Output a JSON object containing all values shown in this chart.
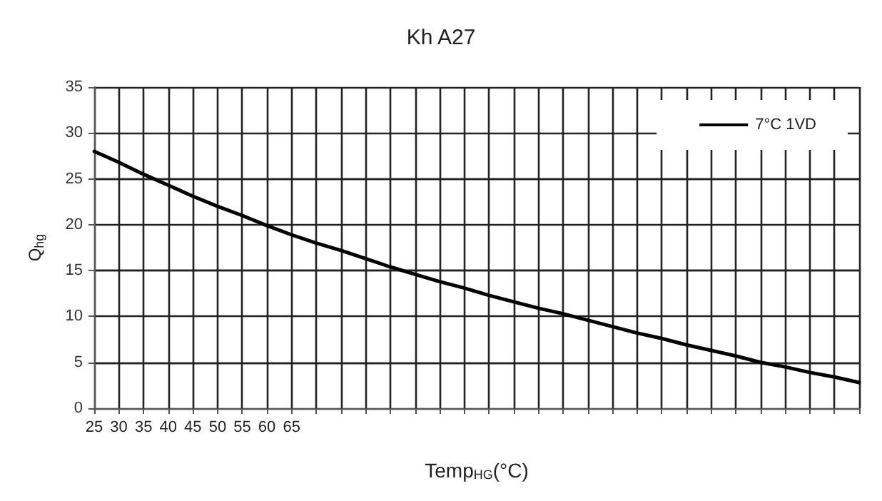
{
  "chart_data": {
    "type": "line",
    "title": "Kh A27",
    "xlabel": "Temp$_{HG}$(°C)",
    "ylabel": "Q$_{hg}$",
    "categories": [
      "25",
      "30",
      "35",
      "40",
      "45",
      "50",
      "55",
      "60",
      "65",
      null,
      null,
      null,
      null,
      null,
      null,
      null,
      null,
      null,
      null,
      null,
      null,
      null,
      null,
      null,
      null,
      null,
      null,
      null,
      null,
      null,
      null,
      null
    ],
    "series": [
      {
        "name": "7°C 1VD",
        "color": "#000000",
        "values": [
          28.0,
          26.8,
          25.5,
          24.3,
          23.1,
          22.0,
          21.0,
          19.9,
          18.9,
          18.0,
          17.2,
          16.3,
          15.4,
          14.6,
          13.8,
          13.1,
          12.3,
          11.6,
          10.9,
          10.3,
          9.6,
          8.9,
          8.2,
          7.6,
          6.9,
          6.3,
          5.7,
          5.0,
          4.5,
          3.9,
          3.4,
          2.8
        ]
      }
    ],
    "ylim": [
      0,
      35
    ],
    "yticks": [
      0,
      5,
      10,
      15,
      20,
      25,
      30,
      35
    ],
    "grid": true,
    "legend": "top right",
    "marker": "none",
    "line_style": "solid"
  }
}
